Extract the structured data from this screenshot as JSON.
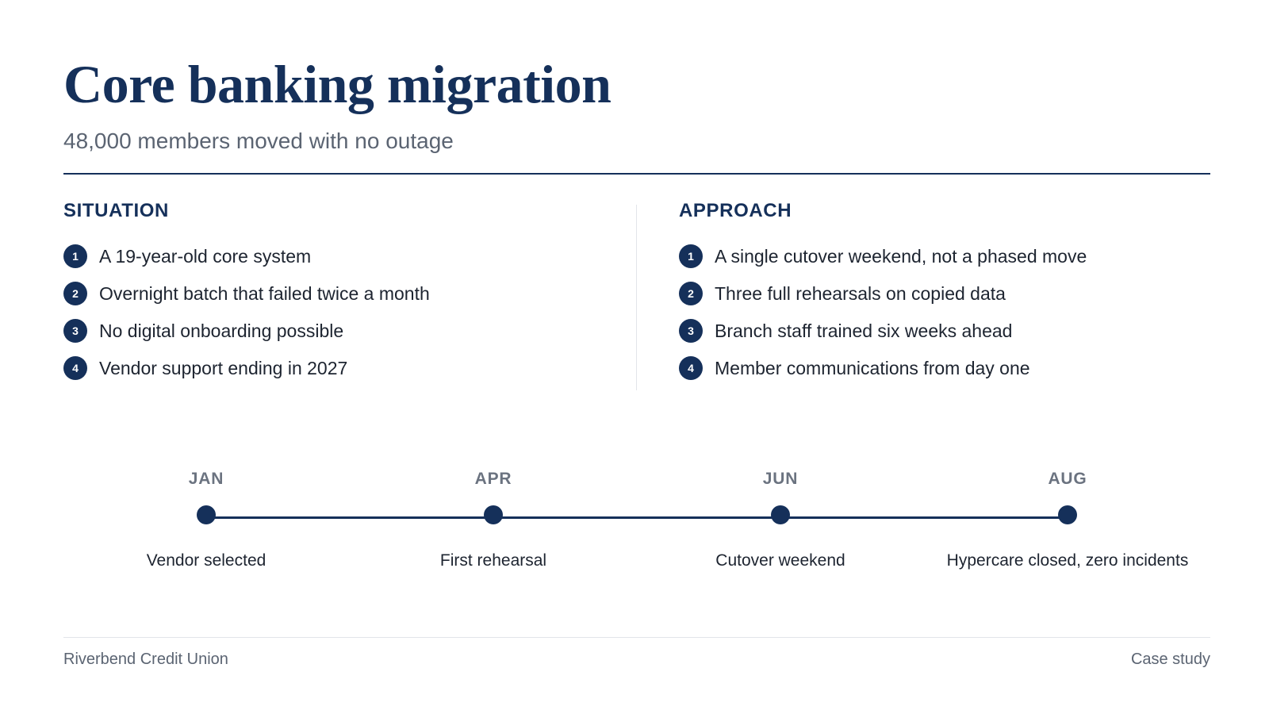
{
  "header": {
    "title": "Core banking migration",
    "subtitle": "48,000 members moved with no outage"
  },
  "situation": {
    "heading": "SITUATION",
    "items": [
      {
        "number": "1",
        "text": "A 19-year-old core system"
      },
      {
        "number": "2",
        "text": "Overnight batch that failed twice a month"
      },
      {
        "number": "3",
        "text": "No digital onboarding possible"
      },
      {
        "number": "4",
        "text": "Vendor support ending in 2027"
      }
    ]
  },
  "approach": {
    "heading": "APPROACH",
    "items": [
      {
        "number": "1",
        "text": "A single cutover weekend, not a phased move"
      },
      {
        "number": "2",
        "text": "Three full rehearsals on copied data"
      },
      {
        "number": "3",
        "text": "Branch staff trained six weeks ahead"
      },
      {
        "number": "4",
        "text": "Member communications from day one"
      }
    ]
  },
  "timeline": {
    "points": [
      {
        "month": "JAN",
        "label": "Vendor selected"
      },
      {
        "month": "APR",
        "label": "First rehearsal"
      },
      {
        "month": "JUN",
        "label": "Cutover weekend"
      },
      {
        "month": "AUG",
        "label": "Hypercare closed, zero incidents"
      }
    ]
  },
  "footer": {
    "organization": "Riverbend Credit Union",
    "doc_type": "Case study"
  },
  "colors": {
    "accent_navy": "#15305a",
    "muted_text": "#5b6472",
    "body_text": "#1d2430",
    "divider": "#e2e5ea"
  }
}
